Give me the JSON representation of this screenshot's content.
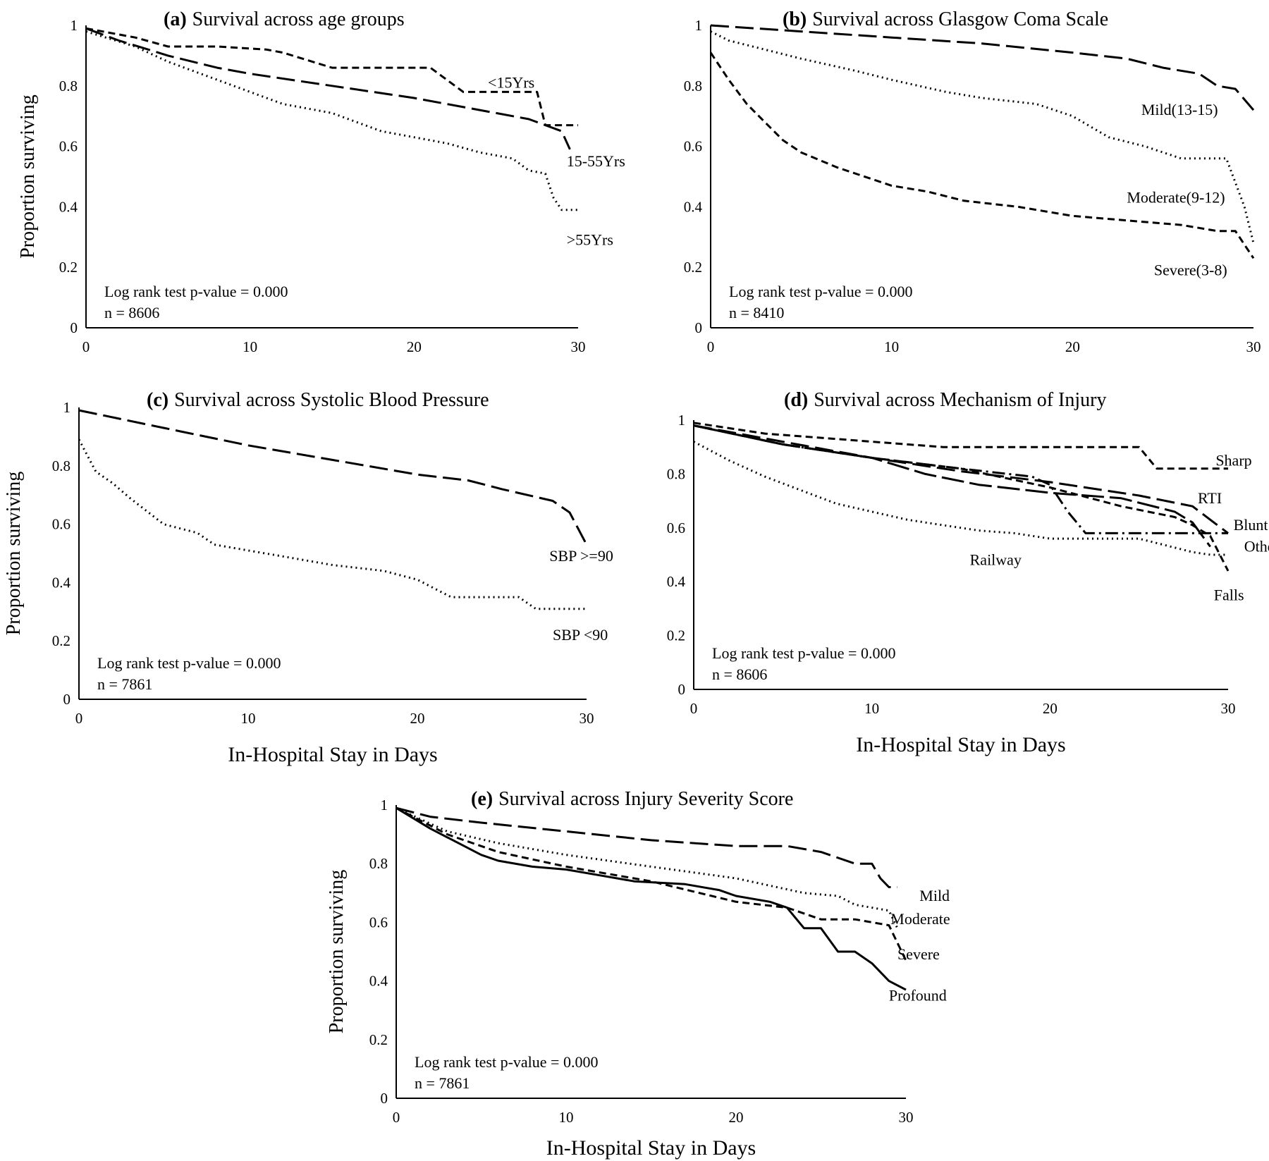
{
  "chart_data": [
    {
      "id": "a",
      "type": "line",
      "letter": "(a)",
      "title": "Survival across age groups",
      "ylabel": "Proportion surviving",
      "xlabel": "",
      "xlim": [
        0,
        30
      ],
      "ylim": [
        0,
        1
      ],
      "xticks": [
        "0",
        "10",
        "20",
        "30"
      ],
      "yticks": [
        "0",
        "0.2",
        "0.4",
        "0.6",
        "0.8",
        "1"
      ],
      "notes": [
        "Log rank test p-value = 0.000",
        "n = 8606"
      ],
      "series": [
        {
          "name": "<15Yrs",
          "dash": "short",
          "x": [
            0,
            3,
            5,
            8,
            11,
            12,
            15,
            18,
            20,
            21,
            23,
            25,
            27,
            27.5,
            28,
            29,
            30
          ],
          "y": [
            0.99,
            0.96,
            0.93,
            0.93,
            0.92,
            0.91,
            0.86,
            0.86,
            0.86,
            0.86,
            0.78,
            0.78,
            0.78,
            0.78,
            0.67,
            0.67,
            0.67
          ]
        },
        {
          "name": "15-55Yrs",
          "dash": "long",
          "x": [
            0,
            2,
            5,
            8,
            10,
            15,
            20,
            25,
            27,
            29,
            29.5
          ],
          "y": [
            0.99,
            0.95,
            0.9,
            0.86,
            0.84,
            0.8,
            0.76,
            0.71,
            0.69,
            0.65,
            0.59
          ]
        },
        {
          "name": ">55Yrs",
          "dash": "dot",
          "x": [
            0,
            3,
            5,
            8,
            10,
            12,
            15,
            18,
            20,
            22,
            24,
            26,
            27,
            28,
            28.5,
            29,
            30
          ],
          "y": [
            0.98,
            0.93,
            0.88,
            0.82,
            0.78,
            0.74,
            0.71,
            0.65,
            0.63,
            0.61,
            0.58,
            0.56,
            0.52,
            0.51,
            0.43,
            0.39,
            0.39
          ]
        }
      ],
      "labels": [
        {
          "text": "<15Yrs",
          "x": 24.5,
          "y": 0.81
        },
        {
          "text": "15-55Yrs",
          "x": 29.3,
          "y": 0.55
        },
        {
          "text": ">55Yrs",
          "x": 29.3,
          "y": 0.29
        }
      ]
    },
    {
      "id": "b",
      "type": "line",
      "letter": "(b)",
      "title": "Survival across Glasgow Coma Scale",
      "ylabel": "",
      "xlabel": "",
      "xlim": [
        0,
        30
      ],
      "ylim": [
        0,
        1
      ],
      "xticks": [
        "0",
        "10",
        "20",
        "30"
      ],
      "yticks": [
        "0",
        "0.2",
        "0.4",
        "0.6",
        "0.8",
        "1"
      ],
      "notes": [
        "Log rank test p-value = 0.000",
        "n = 8410"
      ],
      "series": [
        {
          "name": "Mild(13-15)",
          "dash": "long",
          "x": [
            0,
            5,
            10,
            15,
            20,
            23,
            25,
            27,
            28,
            29,
            30
          ],
          "y": [
            1.0,
            0.98,
            0.96,
            0.94,
            0.91,
            0.89,
            0.86,
            0.84,
            0.8,
            0.79,
            0.72
          ]
        },
        {
          "name": "Moderate(9-12)",
          "dash": "dot",
          "x": [
            0,
            1,
            3,
            5,
            8,
            10,
            13,
            15,
            18,
            20,
            22,
            24,
            25,
            26,
            28,
            28.5,
            29.5,
            30
          ],
          "y": [
            0.98,
            0.95,
            0.92,
            0.89,
            0.85,
            0.82,
            0.78,
            0.76,
            0.74,
            0.7,
            0.63,
            0.6,
            0.58,
            0.56,
            0.56,
            0.56,
            0.4,
            0.28
          ]
        },
        {
          "name": "Severe(3-8)",
          "dash": "short",
          "x": [
            0,
            1,
            2,
            3,
            4,
            5,
            7,
            9,
            10,
            12,
            14,
            17,
            20,
            22,
            24,
            26,
            28,
            29,
            30
          ],
          "y": [
            0.91,
            0.82,
            0.74,
            0.68,
            0.62,
            0.58,
            0.53,
            0.49,
            0.47,
            0.45,
            0.42,
            0.4,
            0.37,
            0.36,
            0.35,
            0.34,
            0.32,
            0.32,
            0.23
          ]
        }
      ],
      "labels": [
        {
          "text": "Mild(13-15)",
          "x": 23.8,
          "y": 0.72
        },
        {
          "text": "Moderate(9-12)",
          "x": 23.0,
          "y": 0.43
        },
        {
          "text": "Severe(3-8)",
          "x": 24.5,
          "y": 0.19
        }
      ]
    },
    {
      "id": "c",
      "type": "line",
      "letter": "(c)",
      "title": "Survival across Systolic Blood Pressure",
      "ylabel": "Proportion surviving",
      "xlabel": "In-Hospital Stay in Days",
      "xlim": [
        0,
        30
      ],
      "ylim": [
        0,
        1
      ],
      "xticks": [
        "0",
        "10",
        "20",
        "30"
      ],
      "yticks": [
        "0",
        "0.2",
        "0.4",
        "0.6",
        "0.8",
        "1"
      ],
      "notes": [
        "Log rank test p-value = 0.000",
        "n = 7861"
      ],
      "series": [
        {
          "name": "SBP >=90",
          "dash": "long",
          "x": [
            0,
            5,
            10,
            15,
            20,
            23,
            25,
            28,
            29,
            30
          ],
          "y": [
            0.99,
            0.93,
            0.87,
            0.82,
            0.77,
            0.75,
            0.72,
            0.68,
            0.64,
            0.53
          ]
        },
        {
          "name": "SBP <90",
          "dash": "dot",
          "x": [
            0,
            1,
            2,
            3,
            5,
            7,
            8,
            10,
            12,
            15,
            18,
            20,
            21,
            22,
            24,
            26,
            27,
            30
          ],
          "y": [
            0.89,
            0.78,
            0.74,
            0.69,
            0.6,
            0.57,
            0.53,
            0.51,
            0.49,
            0.46,
            0.44,
            0.41,
            0.38,
            0.35,
            0.35,
            0.35,
            0.31,
            0.31
          ]
        }
      ],
      "labels": [
        {
          "text": "SBP >=90",
          "x": 27.8,
          "y": 0.49
        },
        {
          "text": "SBP <90",
          "x": 28.0,
          "y": 0.22
        }
      ]
    },
    {
      "id": "d",
      "type": "line",
      "letter": "(d)",
      "title": "Survival across Mechanism of Injury",
      "ylabel": "",
      "xlabel": "In-Hospital Stay in Days",
      "xlim": [
        0,
        30
      ],
      "ylim": [
        0,
        1
      ],
      "xticks": [
        "0",
        "10",
        "20",
        "30"
      ],
      "yticks": [
        "0",
        "0.2",
        "0.4",
        "0.6",
        "0.8",
        "1"
      ],
      "notes": [
        "Log rank test p-value = 0.000",
        "n = 8606"
      ],
      "series": [
        {
          "name": "Sharp",
          "dash": "short",
          "x": [
            0,
            4,
            8,
            12,
            14,
            18,
            22,
            25,
            26,
            27,
            30
          ],
          "y": [
            0.99,
            0.95,
            0.93,
            0.91,
            0.9,
            0.9,
            0.9,
            0.9,
            0.82,
            0.82,
            0.82
          ]
        },
        {
          "name": "RTI",
          "dash": "long",
          "x": [
            0,
            5,
            10,
            15,
            20,
            25,
            28,
            29,
            30
          ],
          "y": [
            0.98,
            0.92,
            0.86,
            0.81,
            0.77,
            0.72,
            0.68,
            0.63,
            0.58
          ]
        },
        {
          "name": "Blunt",
          "dash": "dashdot",
          "x": [
            0,
            5,
            10,
            15,
            19,
            20,
            21,
            22,
            25,
            28,
            30
          ],
          "y": [
            0.98,
            0.91,
            0.86,
            0.82,
            0.79,
            0.76,
            0.66,
            0.58,
            0.58,
            0.58,
            0.58
          ]
        },
        {
          "name": "Other",
          "dash": "longdash",
          "x": [
            0,
            5,
            10,
            13,
            16,
            20,
            24,
            27,
            28,
            29
          ],
          "y": [
            0.98,
            0.91,
            0.86,
            0.8,
            0.76,
            0.73,
            0.71,
            0.66,
            0.62,
            0.53
          ]
        },
        {
          "name": "Falls",
          "dash": "short",
          "x": [
            0,
            5,
            10,
            15,
            20,
            24,
            27,
            28,
            29,
            30
          ],
          "y": [
            0.98,
            0.91,
            0.86,
            0.82,
            0.75,
            0.68,
            0.64,
            0.61,
            0.57,
            0.44
          ]
        },
        {
          "name": "Railway",
          "dash": "dot",
          "x": [
            0,
            2,
            4,
            6,
            8,
            10,
            12,
            14,
            16,
            18,
            20,
            22,
            25,
            28,
            29,
            30
          ],
          "y": [
            0.92,
            0.85,
            0.79,
            0.74,
            0.69,
            0.66,
            0.63,
            0.61,
            0.59,
            0.58,
            0.56,
            0.56,
            0.56,
            0.51,
            0.5,
            0.5
          ]
        }
      ],
      "labels": [
        {
          "text": "Sharp",
          "x": 29.3,
          "y": 0.85
        },
        {
          "text": "RTI",
          "x": 28.3,
          "y": 0.71
        },
        {
          "text": "Blunt",
          "x": 30.3,
          "y": 0.61
        },
        {
          "text": "Other",
          "x": 30.9,
          "y": 0.53
        },
        {
          "text": "Falls",
          "x": 29.2,
          "y": 0.35
        },
        {
          "text": "Railway",
          "x": 15.5,
          "y": 0.48
        }
      ]
    },
    {
      "id": "e",
      "type": "line",
      "letter": "(e)",
      "title": "Survival across Injury Severity Score",
      "ylabel": "Proportion surviving",
      "xlabel": "In-Hospital Stay in Days",
      "xlim": [
        0,
        30
      ],
      "ylim": [
        0,
        1
      ],
      "xticks": [
        "0",
        "10",
        "20",
        "30"
      ],
      "yticks": [
        "0",
        "0.2",
        "0.4",
        "0.6",
        "0.8",
        "1"
      ],
      "notes": [
        "Log rank test p-value = 0.000",
        "n = 7861"
      ],
      "series": [
        {
          "name": "Mild",
          "dash": "long",
          "x": [
            0,
            2,
            5,
            10,
            15,
            20,
            22,
            23,
            25,
            27,
            28,
            28.5,
            29,
            29.5
          ],
          "y": [
            0.99,
            0.96,
            0.94,
            0.91,
            0.88,
            0.86,
            0.86,
            0.86,
            0.84,
            0.8,
            0.8,
            0.75,
            0.72,
            0.72
          ]
        },
        {
          "name": "Moderate",
          "dash": "dot",
          "x": [
            0,
            3,
            6,
            10,
            15,
            20,
            24,
            26,
            27,
            29,
            29.5
          ],
          "y": [
            0.99,
            0.91,
            0.87,
            0.83,
            0.79,
            0.75,
            0.7,
            0.69,
            0.66,
            0.64,
            0.58
          ]
        },
        {
          "name": "Severe",
          "dash": "short",
          "x": [
            0,
            3,
            6,
            10,
            15,
            20,
            23,
            25,
            27,
            28,
            29,
            30
          ],
          "y": [
            0.99,
            0.9,
            0.84,
            0.79,
            0.74,
            0.67,
            0.65,
            0.61,
            0.61,
            0.6,
            0.59,
            0.47
          ]
        },
        {
          "name": "Profound",
          "dash": "solid",
          "x": [
            0,
            2,
            4,
            5,
            6,
            8,
            10,
            12,
            14,
            17,
            19,
            20,
            22,
            23,
            24,
            25,
            26,
            27,
            28,
            29,
            30
          ],
          "y": [
            0.99,
            0.92,
            0.86,
            0.83,
            0.81,
            0.79,
            0.78,
            0.76,
            0.74,
            0.73,
            0.71,
            0.69,
            0.67,
            0.65,
            0.58,
            0.58,
            0.5,
            0.5,
            0.46,
            0.4,
            0.37
          ]
        }
      ],
      "labels": [
        {
          "text": "Mild",
          "x": 30.8,
          "y": 0.69
        },
        {
          "text": "Moderate",
          "x": 29.1,
          "y": 0.61
        },
        {
          "text": "Severe",
          "x": 29.5,
          "y": 0.49
        },
        {
          "text": "Profound",
          "x": 29.0,
          "y": 0.35
        }
      ]
    }
  ]
}
